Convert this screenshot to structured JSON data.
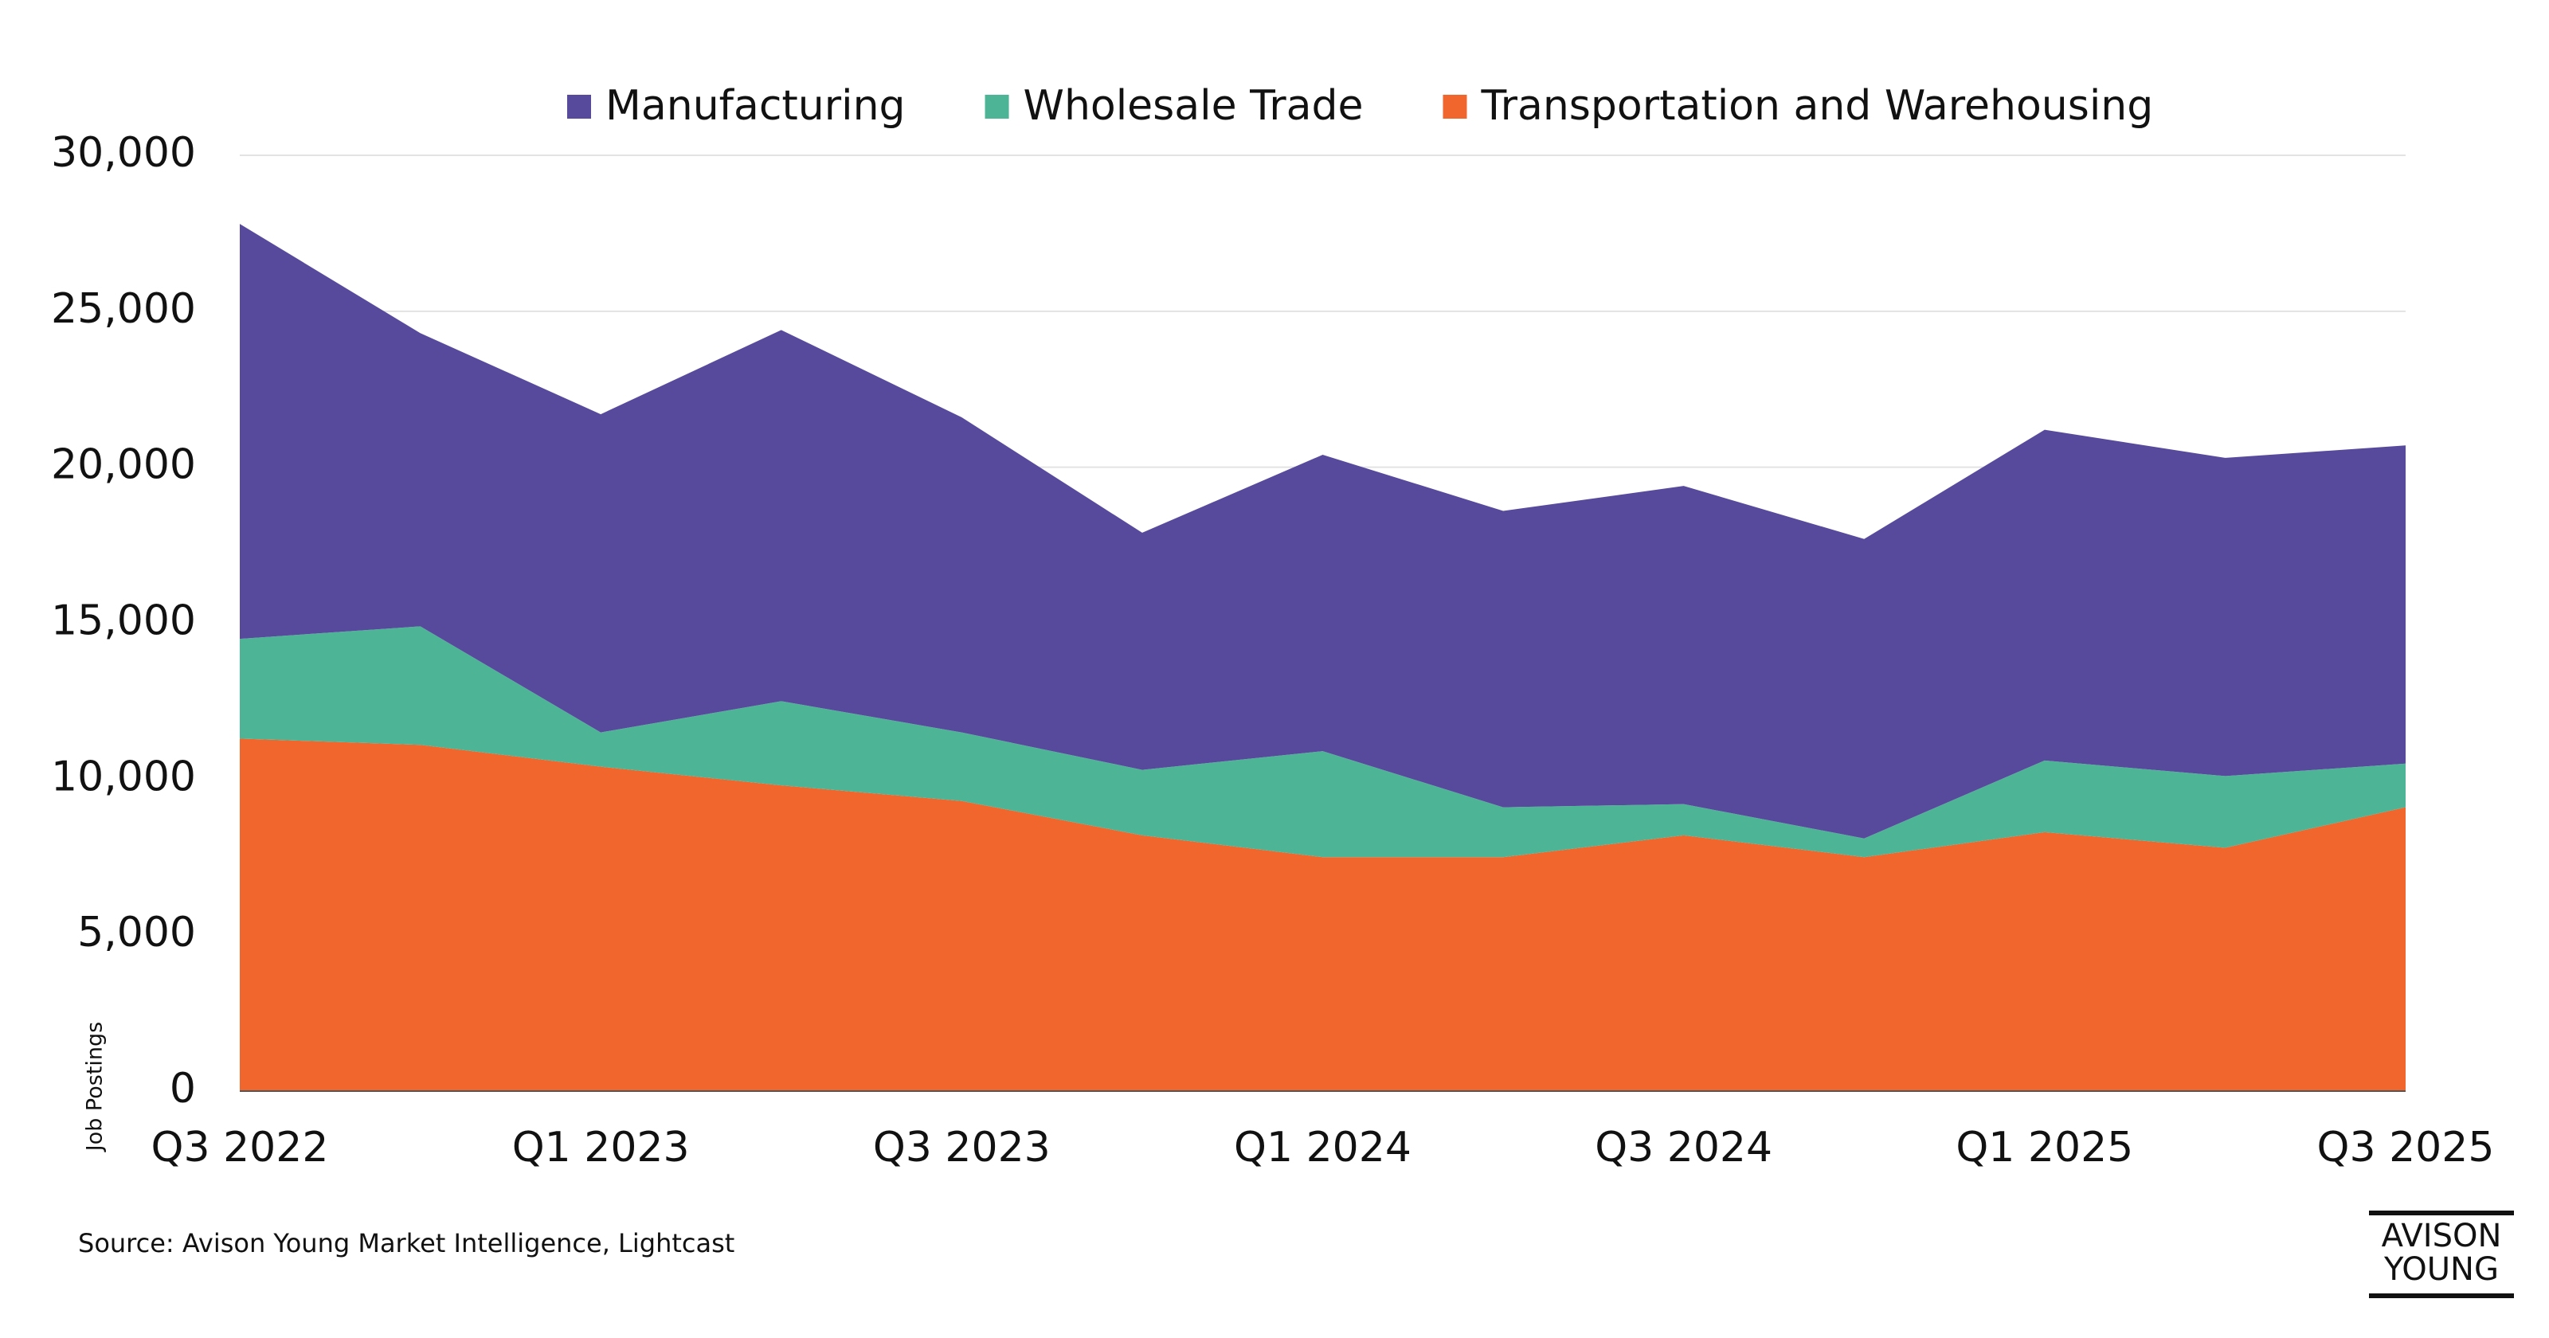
{
  "chart_data": {
    "type": "stacked_area",
    "y_label": "Job Postings",
    "source": "Source: Avison Young Market Intelligence, Lightcast",
    "logo": [
      "AVISON",
      "YOUNG"
    ],
    "categories": [
      "Q3 2022",
      null,
      "Q1 2023",
      null,
      "Q3 2023",
      null,
      "Q1 2024",
      null,
      "Q3 2024",
      null,
      "Q1 2025",
      null,
      "Q3 2025"
    ],
    "series": [
      {
        "name": "Manufacturing",
        "color": "#574a9c",
        "values": [
          13300,
          9400,
          10200,
          11900,
          10100,
          7600,
          9500,
          9500,
          10200,
          9600,
          10600,
          10200,
          10200
        ]
      },
      {
        "name": "Wholesale Trade",
        "color": "#4db595",
        "values": [
          3200,
          3800,
          1100,
          2700,
          2200,
          2100,
          3400,
          1600,
          1000,
          600,
          2300,
          2300,
          1400
        ]
      },
      {
        "name": "Transportation and Warehousing",
        "color": "#f0662d",
        "values": [
          11300,
          11100,
          10400,
          9800,
          9300,
          8200,
          7500,
          7500,
          8200,
          7500,
          8300,
          7800,
          9100
        ]
      }
    ],
    "ylim": [
      0,
      30000
    ],
    "yticks": [
      0,
      {
        "value": 5000,
        "label": "5,000"
      },
      {
        "value": 10000,
        "label": "10,000"
      },
      {
        "value": 15000,
        "label": "15,000"
      },
      {
        "value": 20000,
        "label": "20,000"
      },
      {
        "value": 25000,
        "label": "25,000"
      },
      {
        "value": 30000,
        "label": "30,000"
      }
    ],
    "grid": true,
    "legend": "top"
  }
}
